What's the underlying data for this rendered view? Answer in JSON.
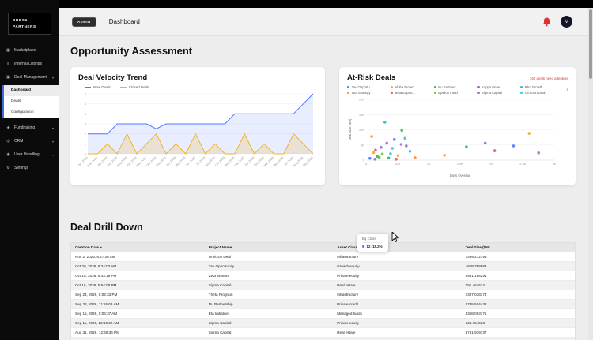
{
  "sidebar": {
    "logo_line1": "BURSA",
    "logo_line2": "PARTNERS",
    "items": [
      {
        "label": "Marketplace",
        "icon": "▦"
      },
      {
        "label": "Internal Listings",
        "icon": "≡"
      },
      {
        "label": "Deal Management",
        "icon": "▣",
        "chevron": "▾"
      },
      {
        "label": "Fundraising",
        "icon": "◈",
        "chevron": "▾"
      },
      {
        "label": "CRM",
        "icon": "◎",
        "chevron": "▾"
      },
      {
        "label": "User Handling",
        "icon": "◉",
        "chevron": "▾"
      },
      {
        "label": "Settings",
        "icon": "⚙"
      }
    ],
    "submenu": [
      {
        "label": "Dashboard",
        "active": true
      },
      {
        "label": "Deals",
        "active": false
      },
      {
        "label": "Configuration",
        "active": false
      }
    ]
  },
  "header": {
    "badge": "ADMIN",
    "title": "Dashboard",
    "avatar": "V"
  },
  "page": {
    "title": "Opportunity Assessment",
    "drill_title": "Deal Drill Down"
  },
  "chart_data": [
    {
      "type": "line",
      "title": "Deal Velocity Trend",
      "x": [
        "Jan 2024",
        "Mar 2024",
        "Apr 2024",
        "Jun 2024",
        "Aug 2024",
        "Oct 2024",
        "Nov 2024",
        "Dec 2024",
        "Feb 2025",
        "Apr 2025",
        "May 2025",
        "Jun 2025",
        "Jul 2025",
        "Aug 2025",
        "Oct 2025",
        "Nov 2025",
        "Dec 2025",
        "Jan 2026",
        "Feb 2026",
        "Mar 2026",
        "May 2026",
        "Jul 2026",
        "Aug 2026",
        "Sep 2026"
      ],
      "ylim": [
        0,
        6
      ],
      "yticks": [
        0,
        1,
        2,
        3,
        4,
        5,
        6
      ],
      "grid": true,
      "legend_position": "top",
      "series": [
        {
          "name": "New Deals",
          "color": "#4e79ff",
          "fill": "rgba(78,121,255,0.13)",
          "values": [
            2,
            2,
            2,
            3,
            3,
            3,
            3,
            2.5,
            3,
            3,
            3,
            3,
            3,
            3,
            3,
            4,
            4,
            4,
            4,
            4,
            4,
            4,
            5,
            6
          ]
        },
        {
          "name": "Closed Deals",
          "color": "#f0b429",
          "fill": "rgba(240,180,41,0.20)",
          "values": [
            0,
            0,
            1,
            0,
            2,
            0,
            1,
            2,
            0,
            1,
            0,
            2,
            0,
            1,
            0,
            0,
            2,
            0,
            1,
            0,
            0,
            2,
            1,
            0
          ]
        }
      ]
    },
    {
      "type": "scatter",
      "title": "At-Risk Deals",
      "alert": "160 deals need attention",
      "xlabel": "Days Overdue",
      "ylabel": "Deal Size ($M)",
      "xlim": [
        0,
        3000
      ],
      "ylim": [
        0,
        20000
      ],
      "xticks": [
        [
          0,
          "0"
        ],
        [
          500,
          "500"
        ],
        [
          1000,
          "1K"
        ],
        [
          1500,
          "1.5K"
        ],
        [
          2000,
          "2K"
        ],
        [
          2500,
          "2.5K"
        ],
        [
          3000,
          "3K"
        ]
      ],
      "yticks": [
        [
          0,
          "0"
        ],
        [
          5000,
          "5K"
        ],
        [
          10000,
          "10K"
        ],
        [
          15000,
          "15K"
        ],
        [
          20000,
          "20K"
        ]
      ],
      "grid": true,
      "legend_position": "top",
      "legend_more": "›",
      "legend": [
        {
          "label": "Tau Opportu...",
          "color": "#4e79ff"
        },
        {
          "label": "Alpha Project",
          "color": "#f5a623"
        },
        {
          "label": "Nu Partners...",
          "color": "#3fae6a"
        },
        {
          "label": "Kappa Deve...",
          "color": "#8e6fd8"
        },
        {
          "label": "Rho Growth",
          "color": "#2bbccb"
        },
        {
          "label": "Iota Strategy",
          "color": "#ff8a3d"
        },
        {
          "label": "Beta Expan...",
          "color": "#e15555"
        },
        {
          "label": "Epsilon Fund",
          "color": "#67c23a"
        },
        {
          "label": "Sigma Capital",
          "color": "#b565c9"
        },
        {
          "label": "Omicron Deal",
          "color": "#35c4e8"
        }
      ],
      "points": [
        {
          "x": 60,
          "y": 600,
          "s": 0
        },
        {
          "x": 120,
          "y": 2500,
          "s": 1
        },
        {
          "x": 180,
          "y": 1200,
          "s": 2
        },
        {
          "x": 240,
          "y": 4200,
          "s": 3
        },
        {
          "x": 300,
          "y": 12500,
          "s": 4
        },
        {
          "x": 90,
          "y": 7800,
          "s": 5
        },
        {
          "x": 150,
          "y": 3300,
          "s": 6
        },
        {
          "x": 210,
          "y": 900,
          "s": 7
        },
        {
          "x": 330,
          "y": 5600,
          "s": 8
        },
        {
          "x": 390,
          "y": 2100,
          "s": 9
        },
        {
          "x": 450,
          "y": 6800,
          "s": 0
        },
        {
          "x": 510,
          "y": 1500,
          "s": 1
        },
        {
          "x": 570,
          "y": 9800,
          "s": 2
        },
        {
          "x": 640,
          "y": 4700,
          "s": 3
        },
        {
          "x": 700,
          "y": 2900,
          "s": 4
        },
        {
          "x": 780,
          "y": 800,
          "s": 5
        },
        {
          "x": 480,
          "y": 300,
          "s": 6
        },
        {
          "x": 260,
          "y": 2000,
          "s": 7
        },
        {
          "x": 560,
          "y": 5200,
          "s": 8
        },
        {
          "x": 420,
          "y": 3900,
          "s": 9
        },
        {
          "x": 1250,
          "y": 1600,
          "s": 1
        },
        {
          "x": 1600,
          "y": 4400,
          "s": 2
        },
        {
          "x": 1900,
          "y": 5600,
          "s": 3
        },
        {
          "x": 2050,
          "y": 3100,
          "s": 6
        },
        {
          "x": 2350,
          "y": 4700,
          "s": 0
        },
        {
          "x": 2600,
          "y": 8800,
          "s": 1
        },
        {
          "x": 2750,
          "y": 2400,
          "s": 8
        },
        {
          "x": 140,
          "y": 300,
          "s": 3
        },
        {
          "x": 360,
          "y": 700,
          "s": 2
        },
        {
          "x": 620,
          "y": 7200,
          "s": 9
        }
      ]
    }
  ],
  "table": {
    "columns": [
      "Creation Date",
      "Project Name",
      "Asset Class",
      "Deal Size ($M)"
    ],
    "sort_indicator": "▾",
    "rows": [
      [
        "Nov 2, 2026, 8:27:36 AM",
        "Omicron Deal",
        "Infrastructure",
        "1499.272791"
      ],
      [
        "Oct 20, 2026, 9:24:03 AM",
        "Tau Opportunity",
        "Growth equity",
        "1608.358883"
      ],
      [
        "Oct 16, 2026, 6:43:19 PM",
        "Zeta Venture",
        "Private equity",
        "3961.188291"
      ],
      [
        "Oct 16, 2026, 5:54:09 PM",
        "Sigma Capital",
        "Real estate",
        "791.464524"
      ],
      [
        "Sep 24, 2026, 8:02:33 PM",
        "Theta Program",
        "Infrastructure",
        "2307.038374"
      ],
      [
        "Sep 23, 2026, 11:55:06 AM",
        "Nu Partnership",
        "Private credit",
        "4795.504438"
      ],
      [
        "Sep 15, 2026, 8:06:37 AM",
        "Eta Initiative",
        "Managed funds",
        "4358.063171"
      ],
      [
        "Sep 11, 2026, 12:10:22 AM",
        "Sigma Capital",
        "Private equity",
        "528.754533"
      ],
      [
        "Aug 31, 2026, 12:46:36 PM",
        "Sigma Capital",
        "Real estate",
        "4761.939737"
      ],
      [
        "Jun 18, 2026, 10:04:17 AM",
        "Epsilon Fund",
        "Private credit",
        "452.357681"
      ]
    ]
  },
  "tooltip": {
    "title": "Eq Class",
    "value": "12 (15.2%)",
    "color": "#4e79ff"
  }
}
